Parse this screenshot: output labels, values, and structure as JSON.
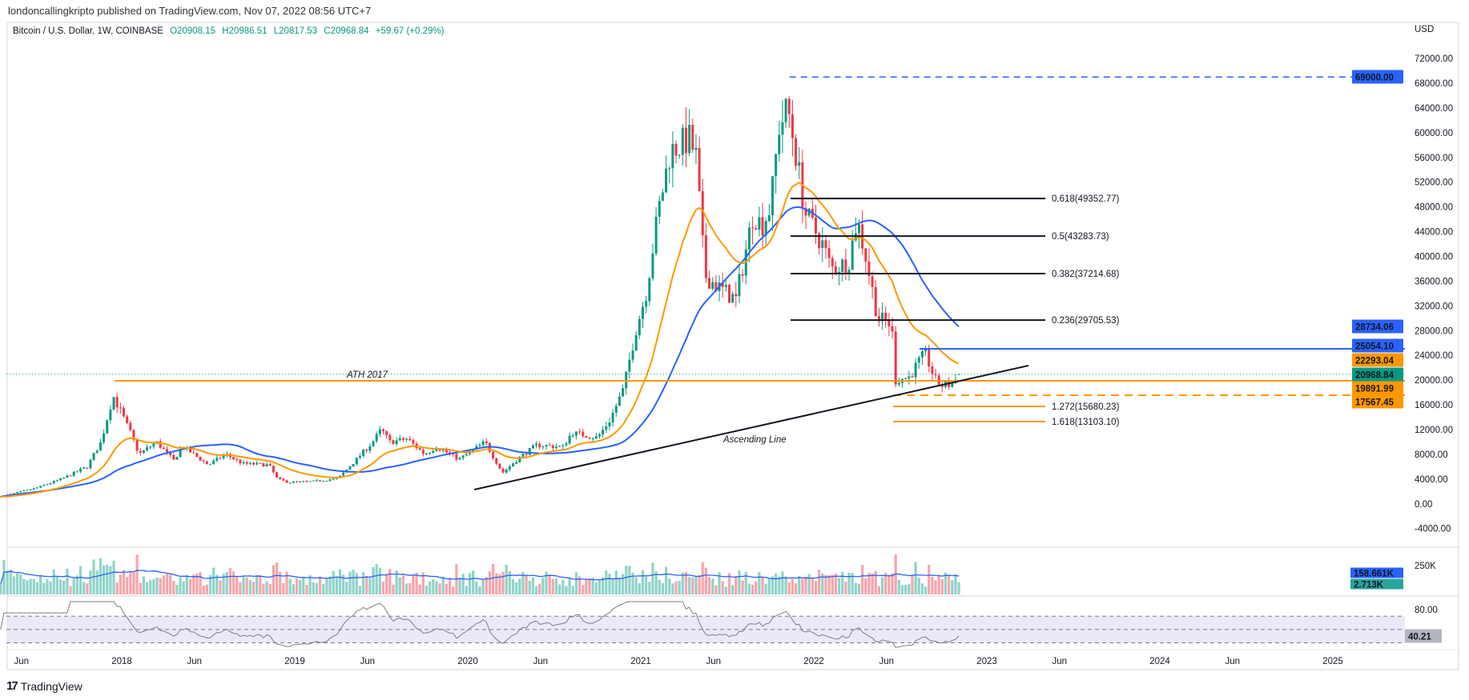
{
  "publisher": "londoncallingkripto published on TradingView.com, Nov 07, 2022 08:56 UTC+7",
  "legend": {
    "symbol": "Bitcoin / U.S. Dollar, 1W, COINBASE",
    "open": "O20908.15",
    "high": "H20986.51",
    "low": "L20817.53",
    "close": "C20968.84",
    "change": "+59.67 (+0.29%)"
  },
  "currency": "USD",
  "brand": "TradingView",
  "colors": {
    "up": "#089981",
    "down": "#f23645",
    "orange": "#ff9800",
    "blue": "#2962ff",
    "line": "#131722",
    "rsi": "#7e7e7e",
    "rsi_band": "#ede8f8"
  },
  "chart_data": {
    "type": "candlestick",
    "title": "Bitcoin / U.S. Dollar, 1W, COINBASE",
    "ylabel": "USD",
    "ylim": [
      -6000,
      72000
    ],
    "y_ticks": [
      "72000.00",
      "68000.00",
      "64000.00",
      "60000.00",
      "56000.00",
      "52000.00",
      "48000.00",
      "44000.00",
      "40000.00",
      "36000.00",
      "32000.00",
      "28000.00",
      "24000.00",
      "20000.00",
      "16000.00",
      "12000.00",
      "8000.00",
      "4000.00",
      "0.00",
      "-4000.00"
    ],
    "y_tick_values": [
      72000,
      68000,
      64000,
      60000,
      56000,
      52000,
      48000,
      44000,
      40000,
      36000,
      32000,
      28000,
      24000,
      20000,
      16000,
      12000,
      8000,
      4000,
      0,
      -4000
    ],
    "x_ticks": [
      {
        "label": "Jun",
        "t": 2017.42
      },
      {
        "label": "2018",
        "t": 2018.0
      },
      {
        "label": "Jun",
        "t": 2018.42
      },
      {
        "label": "2019",
        "t": 2019.0
      },
      {
        "label": "Jun",
        "t": 2019.42
      },
      {
        "label": "2020",
        "t": 2020.0
      },
      {
        "label": "Jun",
        "t": 2020.42
      },
      {
        "label": "2021",
        "t": 2021.0
      },
      {
        "label": "Jun",
        "t": 2021.42
      },
      {
        "label": "2022",
        "t": 2022.0
      },
      {
        "label": "Jun",
        "t": 2022.42
      },
      {
        "label": "2023",
        "t": 2023.0
      },
      {
        "label": "Jun",
        "t": 2023.42
      },
      {
        "label": "2024",
        "t": 2024.0
      },
      {
        "label": "Jun",
        "t": 2024.42
      },
      {
        "label": "2025",
        "t": 2025.0
      }
    ],
    "price_path_weekly_close_anchors": [
      [
        2017.3,
        1200
      ],
      [
        2017.5,
        2500
      ],
      [
        2017.65,
        4000
      ],
      [
        2017.8,
        6000
      ],
      [
        2017.88,
        10000
      ],
      [
        2017.95,
        17500
      ],
      [
        2018.05,
        11500
      ],
      [
        2018.1,
        8000
      ],
      [
        2018.2,
        10000
      ],
      [
        2018.3,
        7000
      ],
      [
        2018.35,
        9300
      ],
      [
        2018.5,
        6300
      ],
      [
        2018.6,
        8000
      ],
      [
        2018.7,
        6500
      ],
      [
        2018.85,
        6300
      ],
      [
        2018.9,
        4000
      ],
      [
        2018.96,
        3500
      ],
      [
        2019.1,
        3600
      ],
      [
        2019.25,
        4100
      ],
      [
        2019.35,
        7000
      ],
      [
        2019.45,
        10000
      ],
      [
        2019.5,
        12000
      ],
      [
        2019.55,
        10000
      ],
      [
        2019.65,
        10500
      ],
      [
        2019.75,
        8000
      ],
      [
        2019.82,
        9200
      ],
      [
        2019.95,
        7200
      ],
      [
        2020.1,
        10000
      ],
      [
        2020.2,
        5000
      ],
      [
        2020.3,
        7500
      ],
      [
        2020.4,
        9500
      ],
      [
        2020.55,
        9200
      ],
      [
        2020.6,
        11500
      ],
      [
        2020.75,
        10700
      ],
      [
        2020.82,
        13500
      ],
      [
        2020.9,
        18500
      ],
      [
        2020.97,
        28000
      ],
      [
        2021.03,
        34000
      ],
      [
        2021.1,
        47000
      ],
      [
        2021.17,
        57000
      ],
      [
        2021.28,
        59000
      ],
      [
        2021.32,
        56000
      ],
      [
        2021.37,
        37000
      ],
      [
        2021.45,
        35000
      ],
      [
        2021.55,
        33000
      ],
      [
        2021.6,
        40000
      ],
      [
        2021.65,
        47000
      ],
      [
        2021.7,
        45000
      ],
      [
        2021.75,
        48000
      ],
      [
        2021.8,
        61000
      ],
      [
        2021.85,
        64000
      ],
      [
        2021.9,
        56000
      ],
      [
        2021.95,
        47000
      ],
      [
        2022.05,
        42000
      ],
      [
        2022.1,
        38000
      ],
      [
        2022.2,
        39000
      ],
      [
        2022.25,
        46000
      ],
      [
        2022.3,
        40000
      ],
      [
        2022.37,
        30000
      ],
      [
        2022.45,
        29000
      ],
      [
        2022.47,
        20000
      ],
      [
        2022.55,
        20500
      ],
      [
        2022.62,
        23500
      ],
      [
        2022.65,
        24000
      ],
      [
        2022.7,
        20000
      ],
      [
        2022.75,
        19000
      ],
      [
        2022.8,
        19500
      ],
      [
        2022.85,
        20968.84
      ]
    ],
    "series": [
      {
        "name": "Price",
        "type": "candlestick"
      },
      {
        "name": "MA fast",
        "color": "#ff9800",
        "last": 22293.04
      },
      {
        "name": "MA slow",
        "color": "#2962ff",
        "last": 28734.06
      }
    ],
    "price_tags": [
      {
        "value": "69000.00",
        "v": 69000,
        "bg": "#2962ff",
        "fg": "#ffffff"
      },
      {
        "value": "28734.06",
        "v": 28734.06,
        "bg": "#2962ff",
        "fg": "#ffffff"
      },
      {
        "value": "25054.10",
        "v": 25054.1,
        "bg": "#2962ff",
        "fg": "#ffffff"
      },
      {
        "value": "22293.04",
        "v": 22293.04,
        "bg": "#ff9800",
        "fg": "#131722"
      },
      {
        "value": "20968.84",
        "v": 20968.84,
        "bg": "#089981",
        "fg": "#ffffff"
      },
      {
        "value": "19891.99",
        "v": 19891.99,
        "bg": "#ff9800",
        "fg": "#131722"
      },
      {
        "value": "17567.45",
        "v": 17567.45,
        "bg": "#ff9800",
        "fg": "#131722"
      }
    ],
    "fib_levels": [
      {
        "label": "0.618(49352.77)",
        "v": 49352.77
      },
      {
        "label": "0.5(43283.73)",
        "v": 43283.73
      },
      {
        "label": "0.382(37214.68)",
        "v": 37214.68
      },
      {
        "label": "0.236(29705.53)",
        "v": 29705.53
      }
    ],
    "fib_extensions": [
      {
        "label": "1.272(15680.23)",
        "v": 15680.23
      },
      {
        "label": "1.618(13103.10)",
        "v": 13103.1
      }
    ],
    "annotations": {
      "ath_label": "ATH 2017",
      "ath_value": 19891.99,
      "ath_high_2021": 69000,
      "resistance": 25054.1,
      "support_dashed": 17567.45,
      "ascending_line_label": "Ascending Line",
      "ascending_line": [
        [
          2020.2,
          3500
        ],
        [
          2023.08,
          23200
        ]
      ]
    },
    "volume": {
      "tick": "250K",
      "tick_value": 250000,
      "tags": [
        {
          "value": "158.661K",
          "bg": "#2962ff"
        },
        {
          "value": "2.713K",
          "bg": "#26a69a"
        }
      ]
    },
    "rsi": {
      "tick": "80.00",
      "tick_value": 80,
      "bands": [
        70,
        50,
        30
      ],
      "last": "40.21",
      "last_value": 40.21
    }
  }
}
